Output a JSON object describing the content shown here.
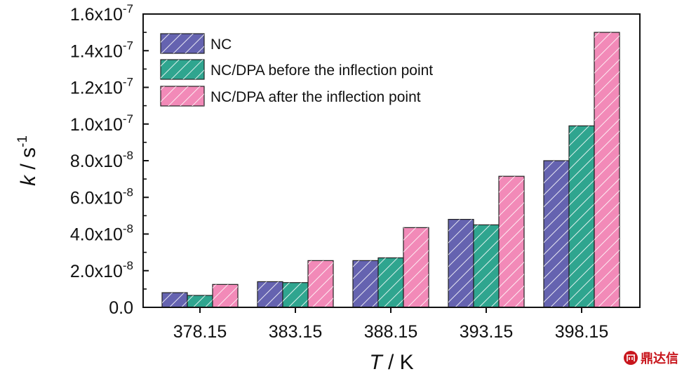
{
  "chart_data": {
    "type": "bar",
    "title": "",
    "xlabel": {
      "var": "T",
      "unit": " / K"
    },
    "ylabel": {
      "var": "k",
      "unit": " / s",
      "exp": "-1"
    },
    "categories": [
      "378.15",
      "383.15",
      "388.15",
      "393.15",
      "398.15"
    ],
    "series": [
      {
        "name": "NC",
        "color": "#6563b0",
        "values": [
          8e-09,
          1.4e-08,
          2.55e-08,
          4.8e-08,
          8e-08
        ]
      },
      {
        "name": "NC/DPA before the inflection point",
        "color": "#2fa58f",
        "values": [
          6.5e-09,
          1.35e-08,
          2.7e-08,
          4.5e-08,
          9.9e-08
        ]
      },
      {
        "name": "NC/DPA after the inflection point",
        "color": "#f28ab8",
        "values": [
          1.25e-08,
          2.55e-08,
          4.35e-08,
          7.15e-08,
          1.5e-07
        ]
      }
    ],
    "ylim": [
      0,
      1.6e-07
    ],
    "yticks": [
      {
        "value": 0,
        "label": "0.0",
        "exp": ""
      },
      {
        "value": 2e-08,
        "label": "2.0x10",
        "exp": "-8"
      },
      {
        "value": 4e-08,
        "label": "4.0x10",
        "exp": "-8"
      },
      {
        "value": 6e-08,
        "label": "6.0x10",
        "exp": "-8"
      },
      {
        "value": 8e-08,
        "label": "8.0x10",
        "exp": "-8"
      },
      {
        "value": 1e-07,
        "label": "1.0x10",
        "exp": "-7"
      },
      {
        "value": 1.2e-07,
        "label": "1.2x10",
        "exp": "-7"
      },
      {
        "value": 1.4e-07,
        "label": "1.4x10",
        "exp": "-7"
      },
      {
        "value": 1.6e-07,
        "label": "1.6x10",
        "exp": "-7"
      }
    ],
    "legend_position": "top-left",
    "grid": false
  },
  "watermark": {
    "text": "鼎达信",
    "color": "#c8161d"
  }
}
